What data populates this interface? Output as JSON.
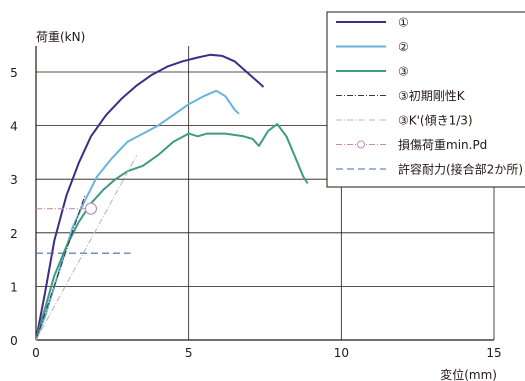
{
  "chart_data": {
    "type": "line",
    "ylabel": "荷重(kN)",
    "xlabel": "変位(mm)",
    "xlim": [
      0,
      15
    ],
    "ylim": [
      0,
      5.7
    ],
    "x_ticks": [
      "0",
      "5",
      "10",
      "15"
    ],
    "y_ticks": [
      "0",
      "1",
      "2",
      "3",
      "4",
      "5"
    ],
    "grid": true,
    "legend_position": "top-right",
    "series": [
      {
        "name": "①",
        "color": "#3d2d86",
        "dash": "",
        "points": [
          [
            0,
            0
          ],
          [
            0.3,
            0.9
          ],
          [
            0.6,
            1.85
          ],
          [
            1.0,
            2.7
          ],
          [
            1.4,
            3.3
          ],
          [
            1.8,
            3.8
          ],
          [
            2.3,
            4.2
          ],
          [
            2.8,
            4.5
          ],
          [
            3.3,
            4.75
          ],
          [
            3.8,
            4.95
          ],
          [
            4.3,
            5.1
          ],
          [
            4.8,
            5.2
          ],
          [
            5.3,
            5.27
          ],
          [
            5.7,
            5.32
          ],
          [
            6.1,
            5.3
          ],
          [
            6.5,
            5.2
          ],
          [
            6.9,
            5.0
          ],
          [
            7.3,
            4.8
          ],
          [
            7.45,
            4.72
          ]
        ]
      },
      {
        "name": "②",
        "color": "#6ab3dc",
        "dash": "",
        "points": [
          [
            0,
            0
          ],
          [
            0.3,
            0.45
          ],
          [
            0.6,
            1.0
          ],
          [
            0.9,
            1.55
          ],
          [
            1.2,
            2.1
          ],
          [
            1.6,
            2.6
          ],
          [
            2.0,
            3.05
          ],
          [
            2.5,
            3.4
          ],
          [
            3.0,
            3.7
          ],
          [
            3.5,
            3.85
          ],
          [
            4.0,
            4.0
          ],
          [
            4.5,
            4.2
          ],
          [
            5.0,
            4.4
          ],
          [
            5.5,
            4.55
          ],
          [
            5.9,
            4.65
          ],
          [
            6.2,
            4.55
          ],
          [
            6.5,
            4.3
          ],
          [
            6.65,
            4.22
          ]
        ]
      },
      {
        "name": "③",
        "color": "#3f9c81",
        "dash": "",
        "points": [
          [
            0,
            0
          ],
          [
            0.3,
            0.6
          ],
          [
            0.6,
            1.2
          ],
          [
            1.0,
            1.75
          ],
          [
            1.4,
            2.2
          ],
          [
            1.8,
            2.55
          ],
          [
            2.2,
            2.8
          ],
          [
            2.6,
            3.0
          ],
          [
            3.0,
            3.15
          ],
          [
            3.5,
            3.25
          ],
          [
            4.0,
            3.45
          ],
          [
            4.5,
            3.7
          ],
          [
            5.0,
            3.85
          ],
          [
            5.3,
            3.8
          ],
          [
            5.6,
            3.85
          ],
          [
            6.2,
            3.85
          ],
          [
            6.8,
            3.8
          ],
          [
            7.1,
            3.75
          ],
          [
            7.3,
            3.62
          ],
          [
            7.6,
            3.9
          ],
          [
            7.9,
            4.03
          ],
          [
            8.2,
            3.8
          ],
          [
            8.5,
            3.4
          ],
          [
            8.75,
            3.05
          ],
          [
            8.9,
            2.92
          ]
        ]
      },
      {
        "name": "③初期剛性K",
        "color": "#3a3a3a",
        "dash": "6 2 1 2",
        "points": [
          [
            0,
            0
          ],
          [
            1.6,
            2.7
          ]
        ]
      },
      {
        "name": "③K'(傾き1/3)",
        "color": "#b9b9b9",
        "dash": "6 2 1 2",
        "points": [
          [
            0,
            0
          ],
          [
            3.3,
            3.45
          ]
        ]
      },
      {
        "name": "損傷荷重min.Pd",
        "color": "#c58dbe",
        "dash": "6 2 1 2",
        "points": [
          [
            0,
            2.45
          ],
          [
            1.8,
            2.45
          ]
        ],
        "marker_at": [
          1.8,
          2.45
        ]
      },
      {
        "name": "許容耐力(接合部2か所)",
        "color": "#4a6aa8",
        "dash": "7 4",
        "points": [
          [
            0,
            1.62
          ],
          [
            3.1,
            1.62
          ]
        ]
      }
    ]
  }
}
